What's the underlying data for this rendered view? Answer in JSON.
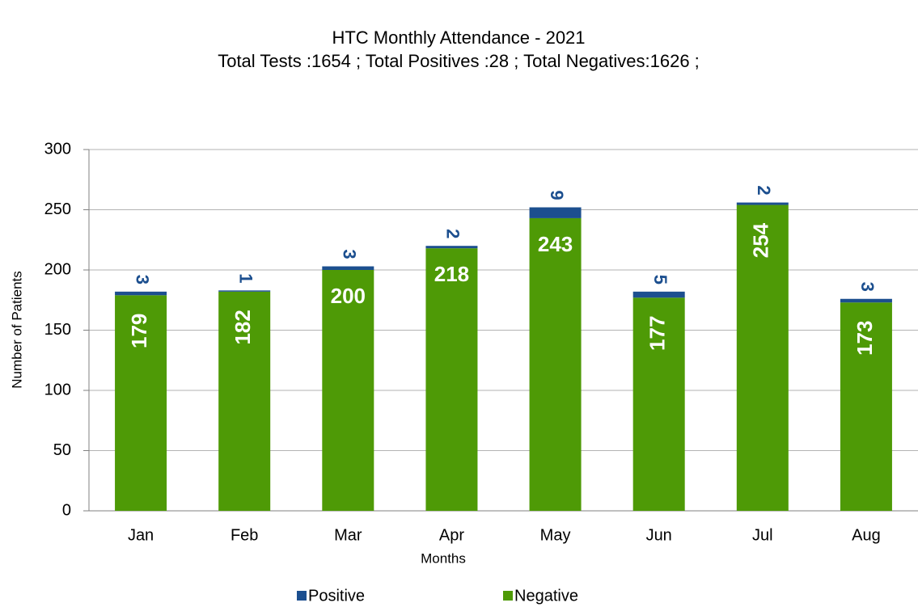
{
  "chart_data": {
    "type": "stacked_bar",
    "title": "HTC Monthly Attendance - 2021",
    "subtitle": "Total Tests :1654 ; Total Positives :28 ; Total Negatives:1626 ;",
    "x_label": "Months",
    "y_label": "Number of Patients",
    "categories": [
      "Jan",
      "Feb",
      "Mar",
      "Apr",
      "May",
      "Jun",
      "Jul",
      "Aug"
    ],
    "series": [
      {
        "name": "Negative",
        "color": "#4e9a06",
        "values": [
          179,
          182,
          200,
          218,
          243,
          177,
          254,
          173
        ]
      },
      {
        "name": "Positive",
        "color": "#1c4f8f",
        "values": [
          3,
          1,
          3,
          2,
          9,
          5,
          2,
          3
        ]
      }
    ],
    "legend_order": [
      "Positive",
      "Negative"
    ],
    "ylim": [
      0,
      300
    ],
    "yticks": [
      0,
      50,
      100,
      150,
      200,
      250,
      300
    ],
    "grid": true,
    "legend": "bottom"
  }
}
